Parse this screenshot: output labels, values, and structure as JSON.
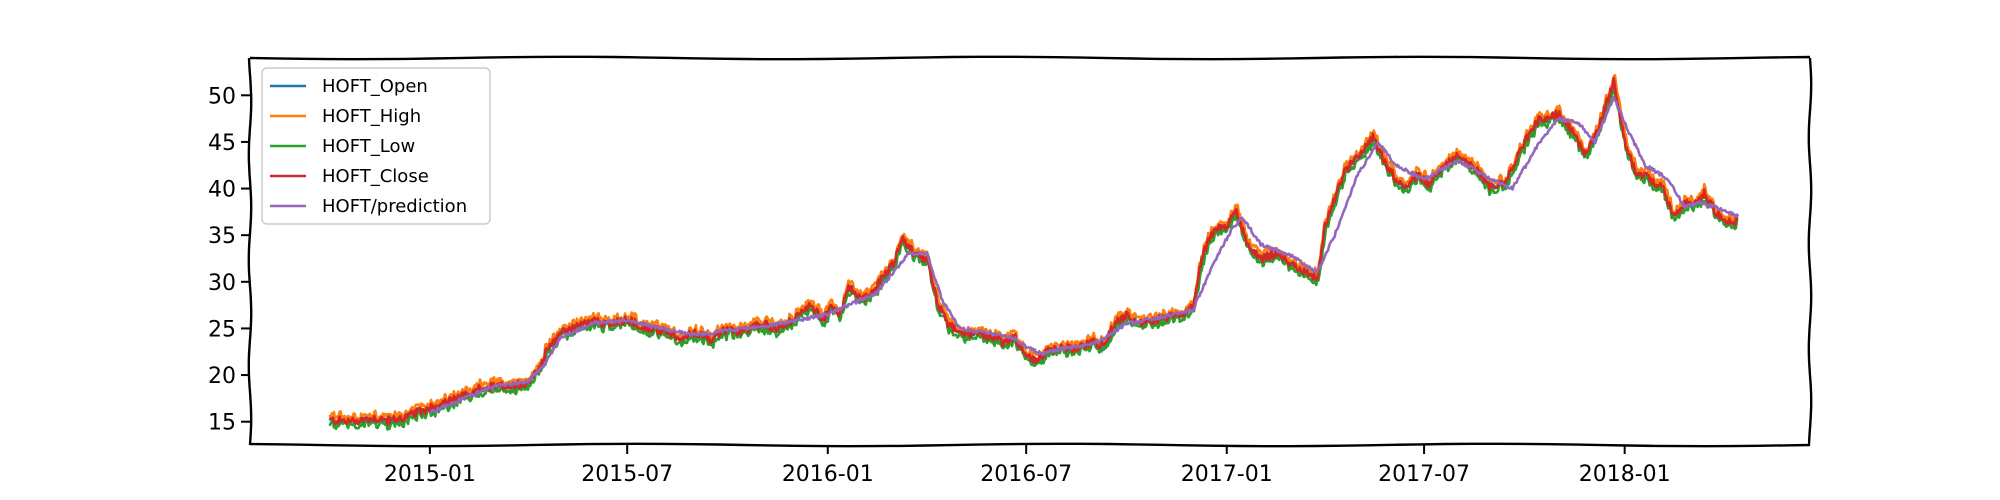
{
  "chart_data": {
    "type": "line",
    "x_axis": {
      "kind": "date",
      "range": [
        "2014-07-20",
        "2018-06-20"
      ],
      "ticks": [
        {
          "date": "2015-01-01",
          "label": "2015-01"
        },
        {
          "date": "2015-07-01",
          "label": "2015-07"
        },
        {
          "date": "2016-01-01",
          "label": "2016-01"
        },
        {
          "date": "2016-07-01",
          "label": "2016-07"
        },
        {
          "date": "2017-01-01",
          "label": "2017-01"
        },
        {
          "date": "2017-07-01",
          "label": "2017-07"
        },
        {
          "date": "2018-01-01",
          "label": "2018-01"
        }
      ]
    },
    "y_axis": {
      "range": [
        12.5,
        54
      ],
      "ticks": [
        15,
        20,
        25,
        30,
        35,
        40,
        45,
        50
      ]
    },
    "legend_position": "upper-left",
    "grid": false,
    "style": "xkcd",
    "series": [
      {
        "name": "HOFT_Open",
        "color": "#1f77b4"
      },
      {
        "name": "HOFT_High",
        "color": "#ff7f0e"
      },
      {
        "name": "HOFT_Low",
        "color": "#2ca02c"
      },
      {
        "name": "HOFT_Close",
        "color": "#d62728"
      },
      {
        "name": "HOFT/prediction",
        "color": "#9467bd"
      }
    ],
    "close": [
      [
        "2014-10-01",
        15.2
      ],
      [
        "2014-10-20",
        15.0
      ],
      [
        "2014-11-10",
        15.4
      ],
      [
        "2014-11-25",
        15.1
      ],
      [
        "2014-12-10",
        15.5
      ],
      [
        "2015-01-01",
        16.5
      ],
      [
        "2015-01-15",
        17.0
      ],
      [
        "2015-02-01",
        17.8
      ],
      [
        "2015-02-15",
        18.5
      ],
      [
        "2015-03-01",
        18.8
      ],
      [
        "2015-03-20",
        19.0
      ],
      [
        "2015-04-01",
        19.2
      ],
      [
        "2015-04-10",
        20.5
      ],
      [
        "2015-04-20",
        23.0
      ],
      [
        "2015-05-01",
        24.5
      ],
      [
        "2015-05-15",
        25.2
      ],
      [
        "2015-06-01",
        25.8
      ],
      [
        "2015-06-15",
        25.5
      ],
      [
        "2015-07-01",
        26.0
      ],
      [
        "2015-07-15",
        25.2
      ],
      [
        "2015-08-01",
        24.8
      ],
      [
        "2015-08-15",
        24.0
      ],
      [
        "2015-09-01",
        24.5
      ],
      [
        "2015-09-15",
        23.8
      ],
      [
        "2015-10-01",
        25.0
      ],
      [
        "2015-10-15",
        24.6
      ],
      [
        "2015-11-01",
        25.5
      ],
      [
        "2015-11-15",
        25.0
      ],
      [
        "2015-12-01",
        26.0
      ],
      [
        "2015-12-15",
        27.5
      ],
      [
        "2015-12-28",
        26.0
      ],
      [
        "2016-01-05",
        27.5
      ],
      [
        "2016-01-12",
        26.5
      ],
      [
        "2016-01-20",
        29.5
      ],
      [
        "2016-02-01",
        28.0
      ],
      [
        "2016-02-15",
        29.5
      ],
      [
        "2016-03-01",
        32.0
      ],
      [
        "2016-03-10",
        34.5
      ],
      [
        "2016-03-20",
        33.0
      ],
      [
        "2016-04-01",
        32.5
      ],
      [
        "2016-04-10",
        28.0
      ],
      [
        "2016-04-20",
        25.5
      ],
      [
        "2016-05-01",
        24.5
      ],
      [
        "2016-05-15",
        24.5
      ],
      [
        "2016-06-01",
        24.0
      ],
      [
        "2016-06-10",
        23.5
      ],
      [
        "2016-06-20",
        24.2
      ],
      [
        "2016-07-01",
        22.0
      ],
      [
        "2016-07-10",
        21.5
      ],
      [
        "2016-07-20",
        22.5
      ],
      [
        "2016-08-01",
        23.0
      ],
      [
        "2016-08-15",
        22.8
      ],
      [
        "2016-09-01",
        23.5
      ],
      [
        "2016-09-10",
        23.0
      ],
      [
        "2016-09-20",
        25.5
      ],
      [
        "2016-10-01",
        26.5
      ],
      [
        "2016-10-15",
        25.5
      ],
      [
        "2016-11-01",
        26.0
      ],
      [
        "2016-11-20",
        26.5
      ],
      [
        "2016-12-01",
        27.5
      ],
      [
        "2016-12-10",
        33.0
      ],
      [
        "2016-12-20",
        35.5
      ],
      [
        "2017-01-01",
        36.0
      ],
      [
        "2017-01-10",
        37.5
      ],
      [
        "2017-01-20",
        34.0
      ],
      [
        "2017-02-01",
        32.5
      ],
      [
        "2017-02-15",
        33.0
      ],
      [
        "2017-03-01",
        32.0
      ],
      [
        "2017-03-15",
        31.0
      ],
      [
        "2017-03-25",
        30.5
      ],
      [
        "2017-04-01",
        36.0
      ],
      [
        "2017-04-10",
        39.0
      ],
      [
        "2017-04-20",
        42.0
      ],
      [
        "2017-05-01",
        43.5
      ],
      [
        "2017-05-15",
        45.5
      ],
      [
        "2017-05-25",
        43.0
      ],
      [
        "2017-06-05",
        41.0
      ],
      [
        "2017-06-15",
        40.0
      ],
      [
        "2017-06-25",
        41.5
      ],
      [
        "2017-07-05",
        40.5
      ],
      [
        "2017-07-15",
        42.0
      ],
      [
        "2017-08-01",
        43.5
      ],
      [
        "2017-08-15",
        42.5
      ],
      [
        "2017-09-01",
        40.0
      ],
      [
        "2017-09-15",
        41.0
      ],
      [
        "2017-10-01",
        45.0
      ],
      [
        "2017-10-15",
        47.5
      ],
      [
        "2017-11-01",
        48.0
      ],
      [
        "2017-11-15",
        46.0
      ],
      [
        "2017-11-25",
        43.5
      ],
      [
        "2017-12-05",
        45.5
      ],
      [
        "2017-12-15",
        49.0
      ],
      [
        "2017-12-22",
        51.5
      ],
      [
        "2018-01-01",
        45.0
      ],
      [
        "2018-01-10",
        42.0
      ],
      [
        "2018-01-25",
        41.0
      ],
      [
        "2018-02-05",
        40.0
      ],
      [
        "2018-02-15",
        37.0
      ],
      [
        "2018-02-25",
        38.5
      ],
      [
        "2018-03-05",
        38.0
      ],
      [
        "2018-03-15",
        39.5
      ],
      [
        "2018-03-25",
        37.5
      ],
      [
        "2018-04-05",
        36.5
      ],
      [
        "2018-04-15",
        36.5
      ]
    ],
    "prediction": [
      [
        "2015-01-01",
        16.0
      ],
      [
        "2015-02-01",
        17.5
      ],
      [
        "2015-03-01",
        18.8
      ],
      [
        "2015-04-01",
        19.3
      ],
      [
        "2015-04-15",
        21.0
      ],
      [
        "2015-05-01",
        24.0
      ],
      [
        "2015-06-01",
        25.6
      ],
      [
        "2015-07-01",
        25.8
      ],
      [
        "2015-08-01",
        25.0
      ],
      [
        "2015-09-01",
        24.3
      ],
      [
        "2015-10-01",
        24.8
      ],
      [
        "2015-11-01",
        25.2
      ],
      [
        "2015-12-01",
        25.8
      ],
      [
        "2016-01-01",
        26.5
      ],
      [
        "2016-01-20",
        27.5
      ],
      [
        "2016-02-15",
        28.8
      ],
      [
        "2016-03-01",
        31.0
      ],
      [
        "2016-03-15",
        33.0
      ],
      [
        "2016-04-01",
        33.0
      ],
      [
        "2016-04-15",
        28.0
      ],
      [
        "2016-05-01",
        25.0
      ],
      [
        "2016-06-01",
        24.5
      ],
      [
        "2016-06-20",
        24.0
      ],
      [
        "2016-07-01",
        23.0
      ],
      [
        "2016-07-15",
        22.3
      ],
      [
        "2016-08-01",
        22.8
      ],
      [
        "2016-09-01",
        23.3
      ],
      [
        "2016-10-01",
        25.5
      ],
      [
        "2016-11-01",
        26.2
      ],
      [
        "2016-12-01",
        27.0
      ],
      [
        "2016-12-20",
        32.0
      ],
      [
        "2017-01-05",
        35.5
      ],
      [
        "2017-01-15",
        37.0
      ],
      [
        "2017-02-01",
        34.0
      ],
      [
        "2017-03-01",
        32.8
      ],
      [
        "2017-03-25",
        31.0
      ],
      [
        "2017-04-10",
        35.0
      ],
      [
        "2017-05-01",
        41.5
      ],
      [
        "2017-05-20",
        45.0
      ],
      [
        "2017-06-05",
        42.5
      ],
      [
        "2017-07-01",
        41.0
      ],
      [
        "2017-08-01",
        43.0
      ],
      [
        "2017-09-01",
        41.0
      ],
      [
        "2017-09-20",
        40.0
      ],
      [
        "2017-10-15",
        45.0
      ],
      [
        "2017-11-01",
        47.5
      ],
      [
        "2017-11-20",
        47.0
      ],
      [
        "2017-12-05",
        45.0
      ],
      [
        "2017-12-22",
        49.8
      ],
      [
        "2018-01-05",
        46.0
      ],
      [
        "2018-01-20",
        42.5
      ],
      [
        "2018-02-10",
        41.0
      ],
      [
        "2018-02-25",
        38.0
      ],
      [
        "2018-03-10",
        38.5
      ],
      [
        "2018-03-25",
        38.0
      ],
      [
        "2018-04-15",
        37.0
      ]
    ]
  }
}
